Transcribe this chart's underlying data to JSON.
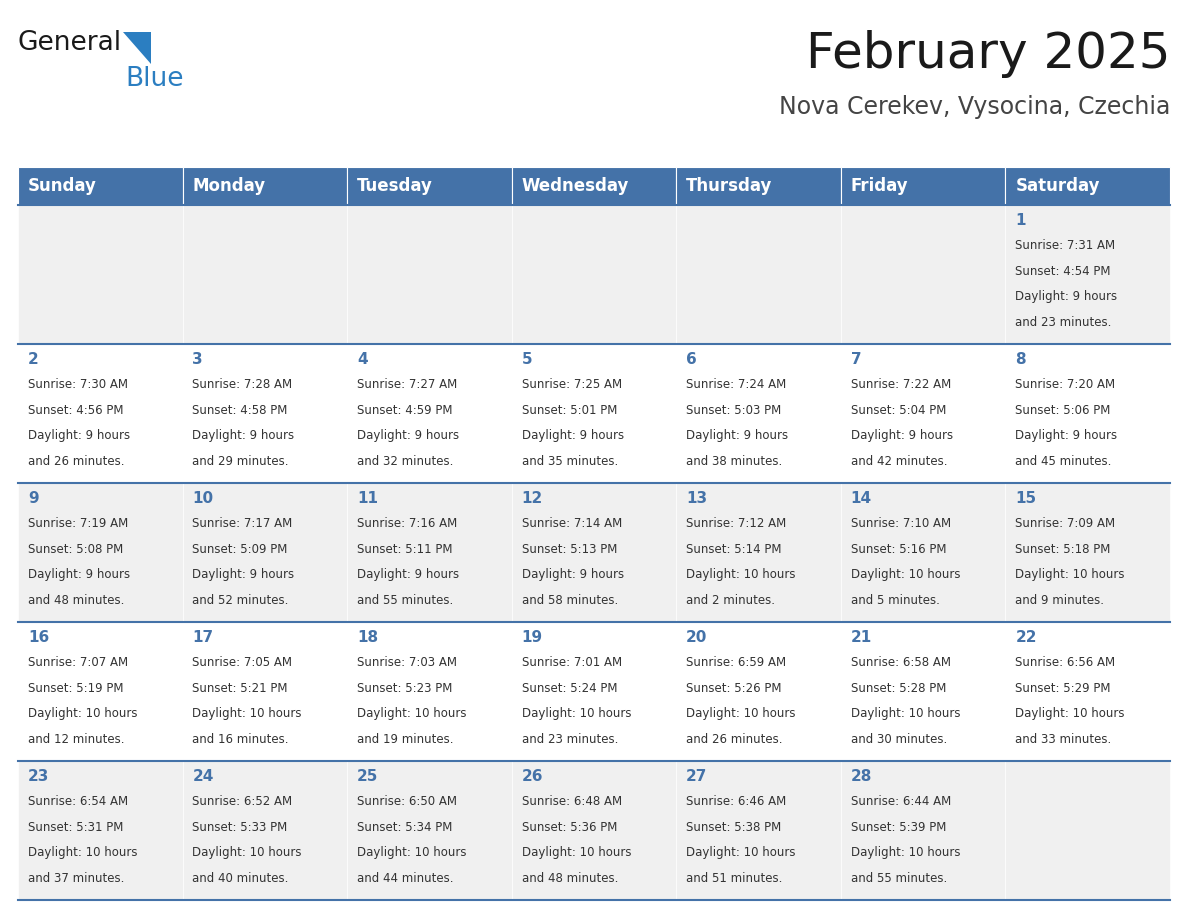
{
  "title": "February 2025",
  "subtitle": "Nova Cerekev, Vysocina, Czechia",
  "days_of_week": [
    "Sunday",
    "Monday",
    "Tuesday",
    "Wednesday",
    "Thursday",
    "Friday",
    "Saturday"
  ],
  "header_bg": "#4472a8",
  "header_text_color": "#ffffff",
  "row_bg_odd": "#f0f0f0",
  "row_bg_even": "#ffffff",
  "cell_border_color": "#4472a8",
  "day_number_color": "#4472a8",
  "text_color": "#333333",
  "logo_general_color": "#1a1a1a",
  "logo_blue_color": "#2b7ec1",
  "logo_triangle_color": "#2b7ec1",
  "calendar_data": [
    {
      "day": 1,
      "col": 6,
      "row": 0,
      "sunrise": "7:31 AM",
      "sunset": "4:54 PM",
      "daylight_hours": 9,
      "daylight_minutes": 23
    },
    {
      "day": 2,
      "col": 0,
      "row": 1,
      "sunrise": "7:30 AM",
      "sunset": "4:56 PM",
      "daylight_hours": 9,
      "daylight_minutes": 26
    },
    {
      "day": 3,
      "col": 1,
      "row": 1,
      "sunrise": "7:28 AM",
      "sunset": "4:58 PM",
      "daylight_hours": 9,
      "daylight_minutes": 29
    },
    {
      "day": 4,
      "col": 2,
      "row": 1,
      "sunrise": "7:27 AM",
      "sunset": "4:59 PM",
      "daylight_hours": 9,
      "daylight_minutes": 32
    },
    {
      "day": 5,
      "col": 3,
      "row": 1,
      "sunrise": "7:25 AM",
      "sunset": "5:01 PM",
      "daylight_hours": 9,
      "daylight_minutes": 35
    },
    {
      "day": 6,
      "col": 4,
      "row": 1,
      "sunrise": "7:24 AM",
      "sunset": "5:03 PM",
      "daylight_hours": 9,
      "daylight_minutes": 38
    },
    {
      "day": 7,
      "col": 5,
      "row": 1,
      "sunrise": "7:22 AM",
      "sunset": "5:04 PM",
      "daylight_hours": 9,
      "daylight_minutes": 42
    },
    {
      "day": 8,
      "col": 6,
      "row": 1,
      "sunrise": "7:20 AM",
      "sunset": "5:06 PM",
      "daylight_hours": 9,
      "daylight_minutes": 45
    },
    {
      "day": 9,
      "col": 0,
      "row": 2,
      "sunrise": "7:19 AM",
      "sunset": "5:08 PM",
      "daylight_hours": 9,
      "daylight_minutes": 48
    },
    {
      "day": 10,
      "col": 1,
      "row": 2,
      "sunrise": "7:17 AM",
      "sunset": "5:09 PM",
      "daylight_hours": 9,
      "daylight_minutes": 52
    },
    {
      "day": 11,
      "col": 2,
      "row": 2,
      "sunrise": "7:16 AM",
      "sunset": "5:11 PM",
      "daylight_hours": 9,
      "daylight_minutes": 55
    },
    {
      "day": 12,
      "col": 3,
      "row": 2,
      "sunrise": "7:14 AM",
      "sunset": "5:13 PM",
      "daylight_hours": 9,
      "daylight_minutes": 58
    },
    {
      "day": 13,
      "col": 4,
      "row": 2,
      "sunrise": "7:12 AM",
      "sunset": "5:14 PM",
      "daylight_hours": 10,
      "daylight_minutes": 2
    },
    {
      "day": 14,
      "col": 5,
      "row": 2,
      "sunrise": "7:10 AM",
      "sunset": "5:16 PM",
      "daylight_hours": 10,
      "daylight_minutes": 5
    },
    {
      "day": 15,
      "col": 6,
      "row": 2,
      "sunrise": "7:09 AM",
      "sunset": "5:18 PM",
      "daylight_hours": 10,
      "daylight_minutes": 9
    },
    {
      "day": 16,
      "col": 0,
      "row": 3,
      "sunrise": "7:07 AM",
      "sunset": "5:19 PM",
      "daylight_hours": 10,
      "daylight_minutes": 12
    },
    {
      "day": 17,
      "col": 1,
      "row": 3,
      "sunrise": "7:05 AM",
      "sunset": "5:21 PM",
      "daylight_hours": 10,
      "daylight_minutes": 16
    },
    {
      "day": 18,
      "col": 2,
      "row": 3,
      "sunrise": "7:03 AM",
      "sunset": "5:23 PM",
      "daylight_hours": 10,
      "daylight_minutes": 19
    },
    {
      "day": 19,
      "col": 3,
      "row": 3,
      "sunrise": "7:01 AM",
      "sunset": "5:24 PM",
      "daylight_hours": 10,
      "daylight_minutes": 23
    },
    {
      "day": 20,
      "col": 4,
      "row": 3,
      "sunrise": "6:59 AM",
      "sunset": "5:26 PM",
      "daylight_hours": 10,
      "daylight_minutes": 26
    },
    {
      "day": 21,
      "col": 5,
      "row": 3,
      "sunrise": "6:58 AM",
      "sunset": "5:28 PM",
      "daylight_hours": 10,
      "daylight_minutes": 30
    },
    {
      "day": 22,
      "col": 6,
      "row": 3,
      "sunrise": "6:56 AM",
      "sunset": "5:29 PM",
      "daylight_hours": 10,
      "daylight_minutes": 33
    },
    {
      "day": 23,
      "col": 0,
      "row": 4,
      "sunrise": "6:54 AM",
      "sunset": "5:31 PM",
      "daylight_hours": 10,
      "daylight_minutes": 37
    },
    {
      "day": 24,
      "col": 1,
      "row": 4,
      "sunrise": "6:52 AM",
      "sunset": "5:33 PM",
      "daylight_hours": 10,
      "daylight_minutes": 40
    },
    {
      "day": 25,
      "col": 2,
      "row": 4,
      "sunrise": "6:50 AM",
      "sunset": "5:34 PM",
      "daylight_hours": 10,
      "daylight_minutes": 44
    },
    {
      "day": 26,
      "col": 3,
      "row": 4,
      "sunrise": "6:48 AM",
      "sunset": "5:36 PM",
      "daylight_hours": 10,
      "daylight_minutes": 48
    },
    {
      "day": 27,
      "col": 4,
      "row": 4,
      "sunrise": "6:46 AM",
      "sunset": "5:38 PM",
      "daylight_hours": 10,
      "daylight_minutes": 51
    },
    {
      "day": 28,
      "col": 5,
      "row": 4,
      "sunrise": "6:44 AM",
      "sunset": "5:39 PM",
      "daylight_hours": 10,
      "daylight_minutes": 55
    }
  ]
}
